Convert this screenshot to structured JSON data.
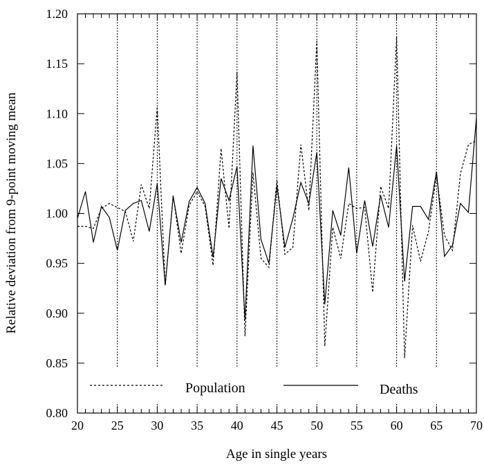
{
  "chart_data": {
    "type": "line",
    "xlabel": "Age in single years",
    "ylabel": "Relative deviation from 9-point moving mean",
    "xlim": [
      20,
      70
    ],
    "ylim": [
      0.8,
      1.2
    ],
    "x_ticks": [
      "20",
      "25",
      "30",
      "35",
      "40",
      "45",
      "50",
      "55",
      "60",
      "65",
      "70"
    ],
    "y_ticks": [
      "0.80",
      "0.85",
      "0.90",
      "0.95",
      "1.00",
      "1.05",
      "1.10",
      "1.15",
      "1.20"
    ],
    "reference_lines_x": [
      25,
      30,
      35,
      40,
      45,
      50,
      55,
      60,
      65
    ],
    "legend_placement": "bottom",
    "x": [
      20,
      21,
      22,
      23,
      24,
      25,
      26,
      27,
      28,
      29,
      30,
      31,
      32,
      33,
      34,
      35,
      36,
      37,
      38,
      39,
      40,
      41,
      42,
      43,
      44,
      45,
      46,
      47,
      48,
      49,
      50,
      51,
      52,
      53,
      54,
      55,
      56,
      57,
      58,
      59,
      60,
      61,
      62,
      63,
      64,
      65,
      66,
      67,
      68,
      69,
      70
    ],
    "series": [
      {
        "name": "Population",
        "line_style": "dotted",
        "values": [
          0.987,
          0.987,
          0.985,
          1.005,
          1.01,
          1.006,
          1.002,
          0.972,
          1.029,
          1.005,
          1.107,
          0.928,
          1.018,
          0.96,
          1.008,
          1.022,
          1.007,
          0.948,
          1.065,
          0.985,
          1.142,
          0.877,
          1.041,
          0.955,
          0.946,
          1.034,
          0.959,
          0.966,
          1.069,
          1.003,
          1.173,
          0.867,
          0.986,
          0.955,
          1.01,
          1.005,
          1.006,
          0.921,
          1.027,
          1.005,
          1.177,
          0.855,
          0.988,
          0.952,
          0.982,
          1.038,
          0.978,
          0.963,
          1.04,
          1.069,
          1.073
        ]
      },
      {
        "name": "Deaths",
        "line_style": "solid",
        "values": [
          0.995,
          1.022,
          0.971,
          1.007,
          0.996,
          0.963,
          1.003,
          1.01,
          1.013,
          0.982,
          1.03,
          0.928,
          1.017,
          0.971,
          1.012,
          1.026,
          1.01,
          0.956,
          1.035,
          1.013,
          1.047,
          0.893,
          1.068,
          0.974,
          0.95,
          1.028,
          0.966,
          0.995,
          1.031,
          1.01,
          1.061,
          0.909,
          1.003,
          0.978,
          1.046,
          0.96,
          1.013,
          0.967,
          1.018,
          0.986,
          1.068,
          0.932,
          1.007,
          1.007,
          0.994,
          1.042,
          0.957,
          0.968,
          1.01,
          1.001,
          1.096
        ]
      }
    ]
  }
}
